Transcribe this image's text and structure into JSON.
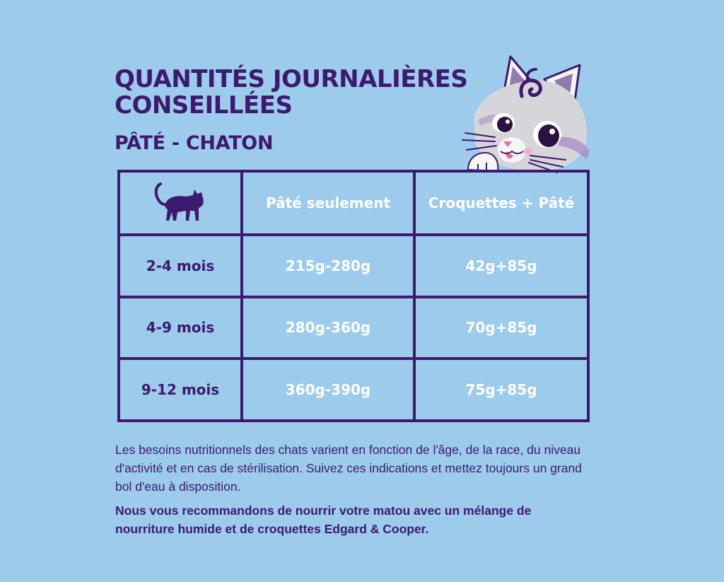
{
  "header": {
    "title": "QUANTITÉS JOURNALIÈRES CONSEILLÉES",
    "subtitle": "PÂTÉ - CHATON"
  },
  "table": {
    "icon": "cat-icon",
    "headers": [
      "Pâté seulement",
      "Croquettes + Pâté"
    ],
    "rows": [
      {
        "age": "2-4 mois",
        "pate": "215g-280g",
        "mix": "42g+85g"
      },
      {
        "age": "4-9 mois",
        "pate": "280g-360g",
        "mix": "70g+85g"
      },
      {
        "age": "9-12 mois",
        "pate": "360g-390g",
        "mix": "75g+85g"
      }
    ]
  },
  "notes": {
    "paragraph1": "Les besoins nutritionnels des chats varient en fonction de l'âge, de la race, du niveau d'activité et en cas de stérilisation. Suivez ces indications et mettez toujours un grand bol d'eau à disposition.",
    "paragraph2": "Nous vous recommandons de nourrir votre matou avec un mélange de nourriture humide et de croquettes Edgard & Cooper."
  },
  "colors": {
    "background": "#9ccbec",
    "primary": "#3d1a6e",
    "text_light": "#ffffff"
  }
}
